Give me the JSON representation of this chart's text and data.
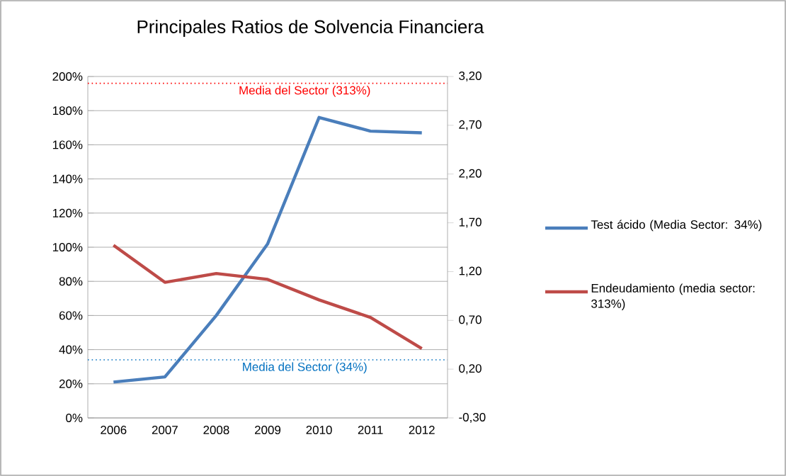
{
  "chart_data": {
    "type": "line",
    "title": "Principales Ratios de Solvencia Financiera",
    "categories": [
      "2006",
      "2007",
      "2008",
      "2009",
      "2010",
      "2011",
      "2012"
    ],
    "series": [
      {
        "name": "Test ácido (Media Sector: 34%)",
        "color": "#4a7ebb",
        "values": [
          21,
          24,
          60,
          102,
          176,
          168,
          167
        ]
      },
      {
        "name": "Endeudamiento (media sector:  313%)",
        "color": "#be4b48",
        "values": [
          1.47,
          1.09,
          1.18,
          1.12,
          0.91,
          0.73,
          0.41
        ],
        "axis": "y2"
      }
    ],
    "ylim": [
      0,
      200
    ],
    "yticks": [
      {
        "value": 0,
        "label": "0%"
      },
      {
        "value": 20,
        "label": "20%"
      },
      {
        "value": 40,
        "label": "40%"
      },
      {
        "value": 60,
        "label": "60%"
      },
      {
        "value": 80,
        "label": "80%"
      },
      {
        "value": 100,
        "label": "100%"
      },
      {
        "value": 120,
        "label": "120%"
      },
      {
        "value": 140,
        "label": "140%"
      },
      {
        "value": 160,
        "label": "160%"
      },
      {
        "value": 180,
        "label": "180%"
      },
      {
        "value": 200,
        "label": "200%"
      }
    ],
    "y2lim": [
      -0.3,
      3.2
    ],
    "y2ticks": [
      {
        "value": -0.3,
        "label": "-0,30"
      },
      {
        "value": 0.2,
        "label": "0,20"
      },
      {
        "value": 0.7,
        "label": "0,70"
      },
      {
        "value": 1.2,
        "label": "1,20"
      },
      {
        "value": 1.7,
        "label": "1,70"
      },
      {
        "value": 2.2,
        "label": "2,20"
      },
      {
        "value": 2.7,
        "label": "2,70"
      },
      {
        "value": 3.2,
        "label": "3,20"
      }
    ],
    "ref_lines": [
      {
        "axis": "y2",
        "value": 3.13,
        "label": "Media del Sector (313%)",
        "color": "#ff0000",
        "line_style": "dotted"
      },
      {
        "axis": "y",
        "value": 34,
        "label": "Media del Sector (34%)",
        "color": "#0070c0",
        "line_style": "dotted"
      }
    ],
    "grid": "y",
    "legend": "right",
    "marker": "none",
    "line_style": "solid"
  }
}
